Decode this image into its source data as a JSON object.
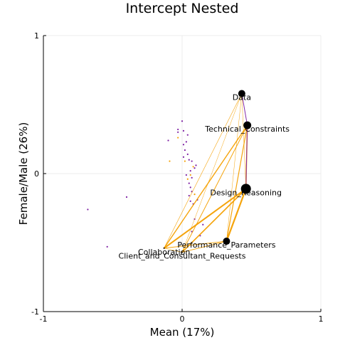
{
  "chart_data": {
    "type": "scatter",
    "title": "Intercept Nested",
    "xlabel": "Mean (17%)",
    "ylabel": "Female/Male (26%)",
    "xlim": [
      -1,
      1
    ],
    "ylim": [
      -1,
      1
    ],
    "xticks": [
      -1,
      0,
      1
    ],
    "yticks": [
      -1,
      0,
      1
    ],
    "grid": true,
    "colors": {
      "orange": "#f5a000",
      "purple": "#7d1fa3",
      "node": "#000000",
      "grid": "#ececec"
    },
    "nodes": [
      {
        "name": "Data",
        "x": 0.43,
        "y": 0.58,
        "size": 5
      },
      {
        "name": "Technical_Constraints",
        "x": 0.47,
        "y": 0.35,
        "size": 5.5
      },
      {
        "name": "Design_Reasoning",
        "x": 0.46,
        "y": -0.11,
        "size": 7
      },
      {
        "name": "Performance_Parameters",
        "x": 0.32,
        "y": -0.49,
        "size": 5
      },
      {
        "name": "Collaboration",
        "x": -0.13,
        "y": -0.54,
        "size": 1
      },
      {
        "name": "Client_and_Consultant_Requests",
        "x": 0.0,
        "y": -0.57,
        "size": 1
      }
    ],
    "edges": [
      {
        "source": "Design_Reasoning",
        "target": "Performance_Parameters",
        "weight": 2.2,
        "color": "orange"
      },
      {
        "source": "Design_Reasoning",
        "target": "Collaboration",
        "weight": 2.0,
        "color": "orange"
      },
      {
        "source": "Design_Reasoning",
        "target": "Client_and_Consultant_Requests",
        "weight": 1.7,
        "color": "orange"
      },
      {
        "source": "Technical_Constraints",
        "target": "Design_Reasoning",
        "weight": 1.5,
        "color": "orange"
      },
      {
        "source": "Technical_Constraints",
        "target": "Performance_Parameters",
        "weight": 1.2,
        "color": "orange"
      },
      {
        "source": "Technical_Constraints",
        "target": "Collaboration",
        "weight": 1.4,
        "color": "orange"
      },
      {
        "source": "Technical_Constraints",
        "target": "Client_and_Consultant_Requests",
        "weight": 1.0,
        "color": "orange"
      },
      {
        "source": "Data",
        "target": "Technical_Constraints",
        "weight": 1.0,
        "color": "purple"
      },
      {
        "source": "Technical_Constraints",
        "target": "Design_Reasoning",
        "weight": 1.0,
        "color": "purple"
      },
      {
        "source": "Data",
        "target": "Collaboration",
        "weight": 0.6,
        "color": "orange"
      },
      {
        "source": "Data",
        "target": "Client_and_Consultant_Requests",
        "weight": 0.5,
        "color": "orange"
      },
      {
        "source": "Data",
        "target": "Performance_Parameters",
        "weight": 0.5,
        "color": "orange"
      },
      {
        "source": "Data",
        "target": "Design_Reasoning",
        "weight": 0.5,
        "color": "orange"
      },
      {
        "source": "Performance_Parameters",
        "target": "Collaboration",
        "weight": 1.0,
        "color": "orange"
      },
      {
        "source": "Performance_Parameters",
        "target": "Client_and_Consultant_Requests",
        "weight": 0.9,
        "color": "orange"
      },
      {
        "source": "Collaboration",
        "target": "Client_and_Consultant_Requests",
        "weight": 0.6,
        "color": "orange"
      }
    ],
    "points": [
      {
        "x": -0.68,
        "y": -0.26,
        "color": "purple"
      },
      {
        "x": -0.54,
        "y": -0.53,
        "color": "purple"
      },
      {
        "x": -0.4,
        "y": -0.17,
        "color": "purple"
      },
      {
        "x": -0.1,
        "y": 0.24,
        "color": "purple"
      },
      {
        "x": -0.03,
        "y": 0.32,
        "color": "purple"
      },
      {
        "x": -0.03,
        "y": 0.3,
        "color": "purple"
      },
      {
        "x": 0.01,
        "y": 0.31,
        "color": "purple"
      },
      {
        "x": 0.04,
        "y": 0.28,
        "color": "purple"
      },
      {
        "x": 0.03,
        "y": 0.23,
        "color": "purple"
      },
      {
        "x": 0.01,
        "y": 0.21,
        "color": "purple"
      },
      {
        "x": 0.02,
        "y": 0.17,
        "color": "purple"
      },
      {
        "x": 0.04,
        "y": 0.14,
        "color": "purple"
      },
      {
        "x": 0.01,
        "y": 0.12,
        "color": "purple"
      },
      {
        "x": 0.05,
        "y": 0.1,
        "color": "purple"
      },
      {
        "x": 0.07,
        "y": 0.09,
        "color": "purple"
      },
      {
        "x": 0.1,
        "y": 0.06,
        "color": "purple"
      },
      {
        "x": 0.09,
        "y": 0.04,
        "color": "purple"
      },
      {
        "x": 0.06,
        "y": 0.02,
        "color": "purple"
      },
      {
        "x": 0.03,
        "y": -0.01,
        "color": "purple"
      },
      {
        "x": 0.07,
        "y": -0.03,
        "color": "purple"
      },
      {
        "x": 0.05,
        "y": -0.07,
        "color": "purple"
      },
      {
        "x": 0.06,
        "y": -0.1,
        "color": "purple"
      },
      {
        "x": 0.07,
        "y": -0.13,
        "color": "purple"
      },
      {
        "x": 0.05,
        "y": -0.16,
        "color": "purple"
      },
      {
        "x": 0.06,
        "y": -0.2,
        "color": "purple"
      },
      {
        "x": 0.08,
        "y": -0.22,
        "color": "purple"
      },
      {
        "x": 0.11,
        "y": -0.19,
        "color": "purple"
      },
      {
        "x": 0.09,
        "y": -0.33,
        "color": "purple"
      },
      {
        "x": 0.07,
        "y": -0.42,
        "color": "purple"
      },
      {
        "x": 0.15,
        "y": -0.37,
        "color": "purple"
      },
      {
        "x": 0.13,
        "y": -0.45,
        "color": "purple"
      },
      {
        "x": 0.0,
        "y": 0.38,
        "color": "purple"
      },
      {
        "x": -0.03,
        "y": 0.26,
        "color": "orange"
      },
      {
        "x": -0.09,
        "y": 0.09,
        "color": "orange"
      },
      {
        "x": 0.02,
        "y": 0.09,
        "color": "orange"
      },
      {
        "x": 0.08,
        "y": 0.05,
        "color": "orange"
      },
      {
        "x": 0.06,
        "y": -0.01,
        "color": "orange"
      },
      {
        "x": 0.04,
        "y": -0.04,
        "color": "orange"
      },
      {
        "x": 0.09,
        "y": -0.15,
        "color": "orange"
      }
    ]
  }
}
